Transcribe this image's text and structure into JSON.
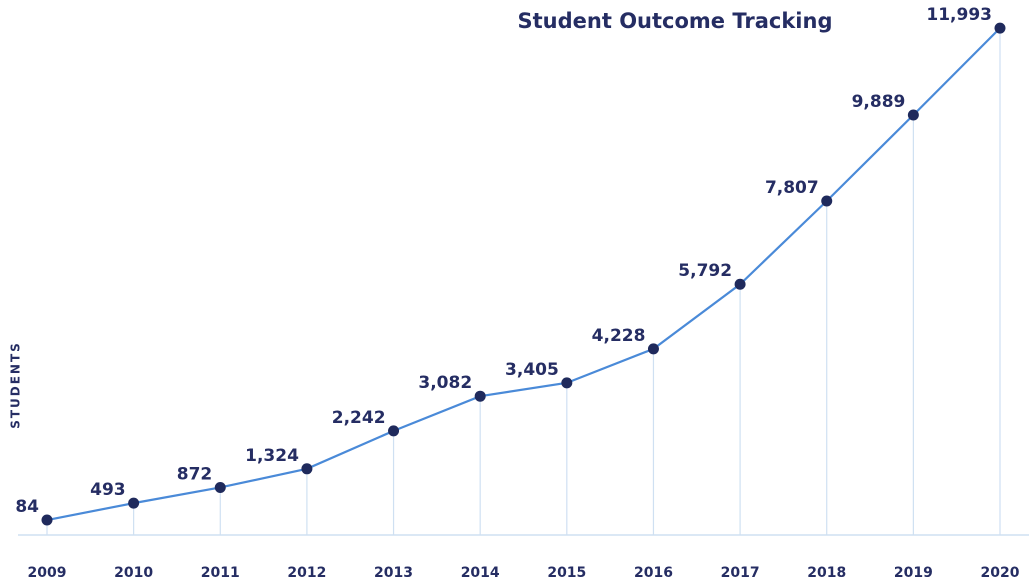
{
  "chart_data": {
    "type": "line",
    "title": "Student Outcome Tracking",
    "y_label": "STUDENTS",
    "categories": [
      "2009",
      "2010",
      "2011",
      "2012",
      "2013",
      "2014",
      "2015",
      "2016",
      "2017",
      "2018",
      "2019",
      "2020"
    ],
    "series": [
      {
        "name": "Students",
        "color": "#4a8ad8",
        "values": [
          84,
          493,
          872,
          1324,
          2242,
          3082,
          3405,
          4228,
          5792,
          7807,
          9889,
          11993
        ],
        "value_labels": [
          "84",
          "493",
          "872",
          "1,324",
          "2,242",
          "3,082",
          "3,405",
          "4,228",
          "5,792",
          "7,807",
          "9,889",
          "11,993"
        ]
      }
    ],
    "marker_color": "#1f2a5c",
    "ylim": [
      0,
      12000
    ]
  }
}
